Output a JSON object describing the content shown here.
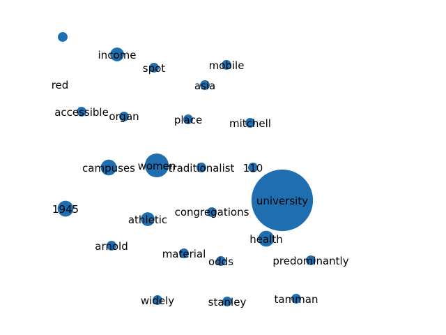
{
  "chart_data": {
    "type": "scatter",
    "title": "",
    "xlabel": "",
    "ylabel": "",
    "grid": false,
    "legend": "none",
    "node_color": "#1f6fb0",
    "label_color": "#000000",
    "nodes": [
      {
        "id": "income",
        "label": "income",
        "size": 3
      },
      {
        "id": "spot",
        "label": "spot",
        "size": 1.5
      },
      {
        "id": "mobile",
        "label": "mobile",
        "size": 1.5
      },
      {
        "id": "red",
        "label": "red",
        "size": 0
      },
      {
        "id": "asia",
        "label": "asia",
        "size": 1.5
      },
      {
        "id": "accessible",
        "label": "accessible",
        "size": 1.5
      },
      {
        "id": "organ",
        "label": "organ",
        "size": 1.5
      },
      {
        "id": "place",
        "label": "place",
        "size": 1.5
      },
      {
        "id": "mitchell",
        "label": "mitchell",
        "size": 1.5
      },
      {
        "id": "campuses",
        "label": "campuses",
        "size": 4
      },
      {
        "id": "women",
        "label": "women",
        "size": 9
      },
      {
        "id": "traditionalist",
        "label": "traditionalist",
        "size": 1.5
      },
      {
        "id": "110",
        "label": "110",
        "size": 1.5
      },
      {
        "id": "university",
        "label": "university",
        "size": 60
      },
      {
        "id": "1945",
        "label": "1945",
        "size": 4
      },
      {
        "id": "congregations",
        "label": "congregations",
        "size": 1.5
      },
      {
        "id": "athletic",
        "label": "athletic",
        "size": 3
      },
      {
        "id": "health",
        "label": "health",
        "size": 4
      },
      {
        "id": "arnold",
        "label": "arnold",
        "size": 1.5
      },
      {
        "id": "material",
        "label": "material",
        "size": 1.5
      },
      {
        "id": "odds",
        "label": "odds",
        "size": 1.5
      },
      {
        "id": "predominantly",
        "label": "predominantly",
        "size": 1.5
      },
      {
        "id": "widely",
        "label": "widely",
        "size": 1.5
      },
      {
        "id": "stanley",
        "label": "stanley",
        "size": 1.5
      },
      {
        "id": "tamman",
        "label": "tamman",
        "size": 1.5
      },
      {
        "id": "top-edge",
        "label": "",
        "size": 1.5
      }
    ]
  }
}
